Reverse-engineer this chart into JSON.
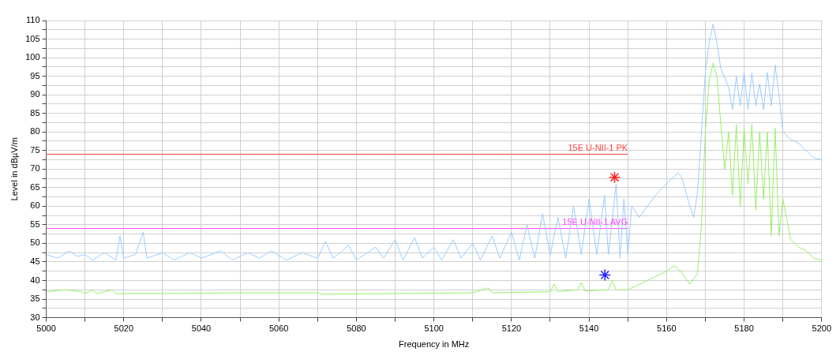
{
  "chart_data": {
    "type": "line",
    "xlabel": "Frequency in MHz",
    "ylabel": "Level in dBµV/m",
    "xlim": [
      5000,
      5200
    ],
    "ylim": [
      30,
      110
    ],
    "xticks": [
      5000,
      {
        "value": 5010,
        "label": null
      },
      5020,
      {
        "value": 5030,
        "label": null
      },
      5040,
      {
        "value": 5050,
        "label": null
      },
      5060,
      {
        "value": 5070,
        "label": null
      },
      5080,
      {
        "value": 5090,
        "label": null
      },
      5100,
      {
        "value": 5110,
        "label": null
      },
      5120,
      {
        "value": 5130,
        "label": null
      },
      5140,
      {
        "value": 5150,
        "label": null
      },
      5160,
      {
        "value": 5170,
        "label": null
      },
      5180,
      {
        "value": 5190,
        "label": null
      },
      5200
    ],
    "yticks": [
      30,
      {
        "value": 32.5,
        "label": null
      },
      35,
      {
        "value": 37.5,
        "label": null
      },
      40,
      {
        "value": 42.5,
        "label": null
      },
      45,
      {
        "value": 47.5,
        "label": null
      },
      50,
      {
        "value": 52.5,
        "label": null
      },
      55,
      {
        "value": 57.5,
        "label": null
      },
      60,
      {
        "value": 62.5,
        "label": null
      },
      65,
      {
        "value": 67.5,
        "label": null
      },
      70,
      {
        "value": 72.5,
        "label": null
      },
      75,
      {
        "value": 77.5,
        "label": null
      },
      80,
      {
        "value": 82.5,
        "label": null
      },
      85,
      {
        "value": 87.5,
        "label": null
      },
      90,
      {
        "value": 92.5,
        "label": null
      },
      95,
      {
        "value": 97.5,
        "label": null
      },
      100,
      {
        "value": 102.5,
        "label": null
      },
      105,
      {
        "value": 107.5,
        "label": null
      },
      110
    ],
    "grid": true,
    "legend": false,
    "marker": "none",
    "line_style": "solid",
    "series": [
      {
        "type": "line",
        "color": "#99ccff",
        "x": [
          5000,
          5003,
          5006,
          5008,
          5010,
          5012,
          5015,
          5018,
          5019,
          5020,
          5023,
          5025,
          5026,
          5030,
          5033,
          5037,
          5040,
          5045,
          5048,
          5052,
          5055,
          5058,
          5062,
          5066,
          5070,
          5072,
          5074,
          5078,
          5080,
          5085,
          5087,
          5090,
          5092,
          5095,
          5097,
          5100,
          5102,
          5105,
          5107,
          5110,
          5112,
          5115,
          5117,
          5120,
          5122,
          5124,
          5126,
          5128,
          5130,
          5132,
          5134,
          5136,
          5138,
          5140,
          5142,
          5144,
          5145,
          5147,
          5148,
          5149,
          5150,
          5151,
          5153,
          5155,
          5158,
          5161,
          5163,
          5164,
          5166,
          5167,
          5168,
          5169,
          5170,
          5171,
          5172,
          5173,
          5174,
          5176,
          5177,
          5178,
          5179,
          5180,
          5181,
          5182,
          5183,
          5184,
          5185,
          5186,
          5187,
          5188,
          5189,
          5190,
          5192,
          5194,
          5196,
          5198,
          5200
        ],
        "values": [
          47,
          46,
          48,
          46.5,
          47,
          45.5,
          47.5,
          45.5,
          52,
          46,
          47,
          53,
          46,
          47.5,
          45.5,
          47.5,
          46,
          48,
          45.5,
          47.5,
          46,
          48,
          45.5,
          47.5,
          46,
          50.5,
          46,
          49.5,
          45.5,
          49,
          46,
          51,
          45.5,
          51.5,
          46,
          49,
          45.5,
          51,
          46,
          50,
          45.5,
          52,
          46,
          53,
          45.5,
          55,
          46,
          58,
          47,
          57,
          46,
          60,
          47,
          62,
          47,
          63,
          47,
          66,
          46,
          62,
          47,
          60,
          57,
          60,
          64,
          67,
          69,
          67.5,
          60,
          57,
          64,
          80,
          96,
          104,
          109,
          104,
          97,
          92,
          86,
          95,
          87,
          96,
          86,
          96,
          87,
          93,
          86,
          96,
          87,
          98,
          90,
          80,
          78,
          77,
          75,
          73,
          72.5
        ]
      },
      {
        "type": "line",
        "color": "#99ee66",
        "x": [
          5000,
          5005,
          5009,
          5010,
          5012,
          5013,
          5017,
          5018,
          5030,
          5050,
          5070,
          5071,
          5090,
          5110,
          5114,
          5115,
          5130,
          5131,
          5132,
          5137,
          5138,
          5139,
          5145,
          5146,
          5147,
          5150,
          5153,
          5156,
          5160,
          5162,
          5164,
          5166,
          5168,
          5169,
          5170,
          5171,
          5172,
          5173,
          5174,
          5175,
          5176,
          5177,
          5178,
          5179,
          5180,
          5181,
          5182,
          5183,
          5184,
          5185,
          5186,
          5187,
          5188,
          5189,
          5190,
          5192,
          5194,
          5196,
          5198,
          5200
        ],
        "values": [
          37,
          37.5,
          37,
          36.5,
          37.5,
          36.5,
          37.5,
          36.5,
          36.5,
          36.7,
          36.7,
          36.3,
          36.5,
          36.7,
          38,
          36.7,
          37,
          39,
          37,
          37.5,
          39.5,
          37.2,
          37.5,
          40,
          37.5,
          37.5,
          39,
          40.5,
          42.5,
          44,
          42,
          39,
          42,
          55,
          80,
          94,
          98.5,
          95,
          82,
          70,
          80,
          63,
          82,
          60,
          81,
          66,
          82,
          59,
          80,
          62,
          80,
          52,
          81,
          52,
          62,
          51,
          49,
          48,
          46,
          45.5
        ]
      },
      {
        "type": "line",
        "color": "#ff4040",
        "x": [
          5000,
          5150
        ],
        "values": [
          74,
          74
        ]
      },
      {
        "type": "line",
        "color": "#ff44ff",
        "x": [
          5000,
          5150
        ],
        "values": [
          54,
          54
        ]
      },
      {
        "type": "scatter",
        "marker": "cross",
        "color": "#ff2020",
        "x": [
          5146.6
        ],
        "values": [
          67.8
        ]
      },
      {
        "type": "scatter",
        "marker": "cross",
        "color": "#2020ff",
        "x": [
          5144.1
        ],
        "values": [
          41.5
        ]
      }
    ],
    "annotations": [
      {
        "text": "15E U-NII-1 PK",
        "x": 5150,
        "y": 74
      },
      {
        "text": "15E U-NII-1 AVG",
        "x": 5150,
        "y": 54
      }
    ]
  }
}
